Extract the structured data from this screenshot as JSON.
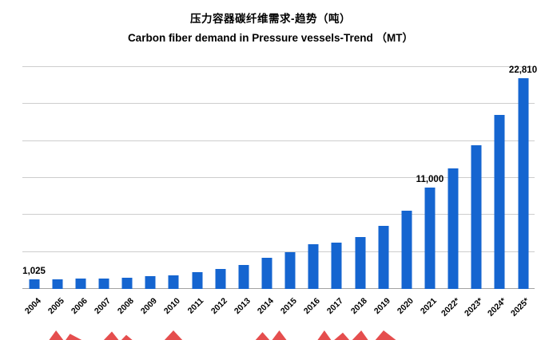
{
  "title_cn": "压力容器碳纤维需求-趋势（吨）",
  "title_en": "Carbon fiber demand in Pressure vessels-Trend （MT）",
  "colors": {
    "bar": "#1565d0",
    "watermark": "#e23b3b",
    "gridline": "#cdcdcd"
  },
  "chart_data": {
    "type": "bar",
    "title": "压力容器碳纤维需求-趋势（吨） / Carbon fiber demand in Pressure vessels-Trend （MT）",
    "xlabel": "",
    "ylabel": "",
    "ylim": [
      0,
      24000
    ],
    "grid_interval": 4000,
    "grid": true,
    "legend": false,
    "bar_color": "#1565d0",
    "categories": [
      "2004",
      "2005",
      "2006",
      "2007",
      "2008",
      "2009",
      "2010",
      "2011",
      "2012",
      "2013",
      "2014",
      "2015",
      "2016",
      "2017",
      "2018",
      "2019",
      "2020",
      "2021",
      "2022*",
      "2023*",
      "2024*",
      "2025*"
    ],
    "values": [
      1025,
      1050,
      1100,
      1150,
      1200,
      1350,
      1500,
      1800,
      2200,
      2600,
      3400,
      4000,
      4800,
      5000,
      5600,
      6800,
      8500,
      11000,
      13000,
      15500,
      18800,
      22810
    ],
    "annotations": [
      {
        "category": "2004",
        "text": "1,025"
      },
      {
        "category": "2021",
        "text": "11,000"
      },
      {
        "category": "2025*",
        "text": "22,810"
      }
    ]
  }
}
